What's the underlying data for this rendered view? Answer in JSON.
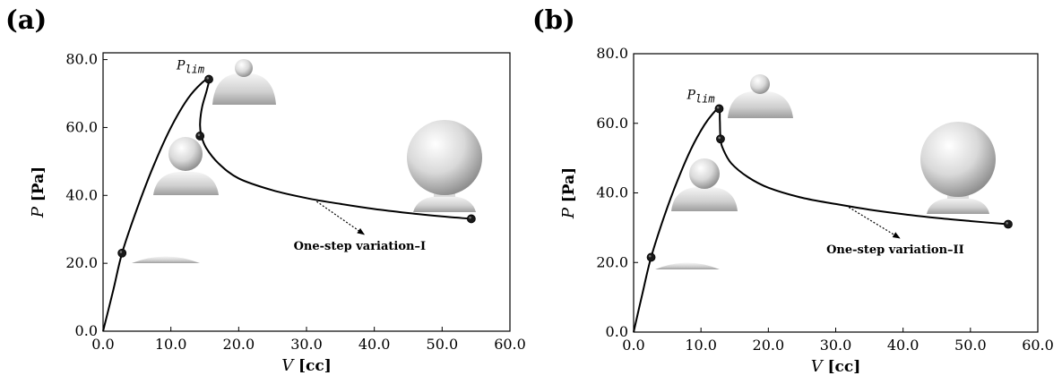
{
  "colors": {
    "curve": "#000000",
    "marker": "#1a1a1a",
    "shape_light": "#f4f4f4",
    "shape_dark": "#9a9a9a"
  },
  "chart_data": [
    {
      "panel_label": "(a)",
      "type": "line",
      "xlabel_var": "V",
      "xlabel_unit": "[cc]",
      "ylabel_var": "P",
      "ylabel_unit": "[Pa]",
      "xlim": [
        0,
        60
      ],
      "ylim": [
        0,
        82
      ],
      "xticks": [
        "0.0",
        "10.0",
        "20.0",
        "30.0",
        "40.0",
        "50.0",
        "60.0"
      ],
      "yticks": [
        "0.0",
        "20.0",
        "40.0",
        "60.0",
        "80.0"
      ],
      "grid": false,
      "series": [
        {
          "x": [
            0,
            1.5,
            2.8,
            5,
            7.5,
            10,
            12.5,
            14.5,
            15.6,
            15.3,
            14.6,
            14.3,
            14.5,
            15.2,
            17,
            20,
            25,
            30,
            35,
            40,
            45,
            50,
            54.3
          ],
          "y": [
            0,
            12,
            23,
            36,
            49,
            60,
            68.5,
            73,
            74.2,
            71,
            66,
            61,
            57.5,
            54,
            49.5,
            45,
            41.5,
            39.2,
            37.5,
            36,
            34.8,
            33.8,
            33.1
          ]
        }
      ],
      "markers": [
        {
          "x": 2.8,
          "y": 23
        },
        {
          "x": 15.6,
          "y": 74.2
        },
        {
          "x": 14.3,
          "y": 57.5
        },
        {
          "x": 54.3,
          "y": 33.1
        }
      ],
      "plim_label": {
        "main": "P",
        "sub": "lim"
      },
      "annotation": {
        "text": "One-step variation–I",
        "arrow_from": [
          31.5,
          38.2
        ],
        "arrow_to": [
          38.5,
          28.5
        ]
      }
    },
    {
      "panel_label": "(b)",
      "type": "line",
      "xlabel_var": "V",
      "xlabel_unit": "[cc]",
      "ylabel_var": "P",
      "ylabel_unit": "[Pa]",
      "xlim": [
        0,
        60
      ],
      "ylim": [
        0,
        80
      ],
      "xticks": [
        "0.0",
        "10.0",
        "20.0",
        "30.0",
        "40.0",
        "50.0",
        "60.0"
      ],
      "yticks": [
        "0.0",
        "20.0",
        "40.0",
        "60.0",
        "80.0"
      ],
      "grid": false,
      "series": [
        {
          "x": [
            0,
            1.3,
            2.6,
            4.5,
            6.5,
            8.5,
            10.5,
            12,
            12.7,
            12.8,
            12.9,
            13.3,
            14.5,
            17,
            20,
            25,
            30,
            35,
            40,
            45,
            50,
            55.6
          ],
          "y": [
            0,
            11,
            21.5,
            33,
            43.5,
            52.5,
            59.5,
            63.3,
            64.2,
            61,
            55.5,
            52.5,
            48.5,
            44.5,
            41.5,
            38.6,
            36.8,
            35.2,
            33.9,
            32.8,
            31.9,
            31
          ]
        }
      ],
      "markers": [
        {
          "x": 2.6,
          "y": 21.5
        },
        {
          "x": 12.7,
          "y": 64.2
        },
        {
          "x": 12.9,
          "y": 55.5
        },
        {
          "x": 55.6,
          "y": 31
        }
      ],
      "plim_label": {
        "main": "P",
        "sub": "lim"
      },
      "annotation": {
        "text": "One-step variation–II",
        "arrow_from": [
          31.5,
          36.4
        ],
        "arrow_to": [
          39.5,
          27
        ]
      }
    }
  ]
}
